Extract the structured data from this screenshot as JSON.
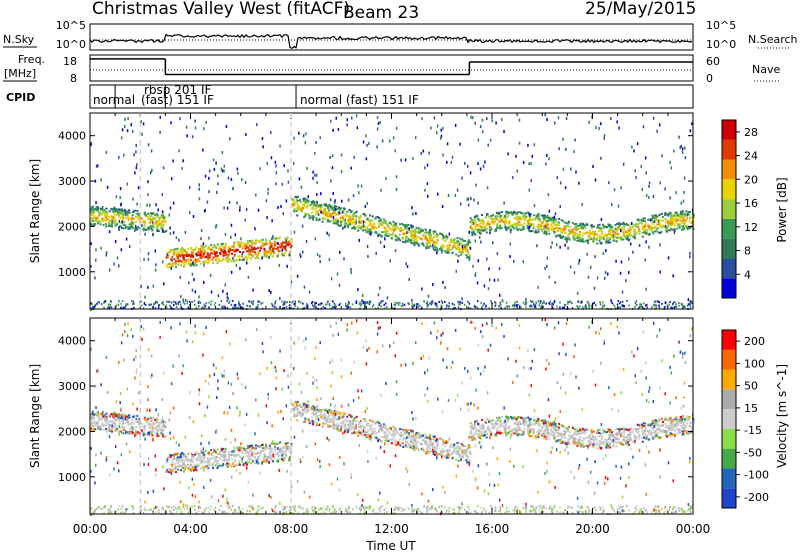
{
  "title": {
    "station": "Christmas Valley West (fitACF)",
    "beam": "Beam 23",
    "date": "25/May/2015"
  },
  "labels": {
    "nsky": "N.Sky",
    "nsearch": "N.Search",
    "freq_line1": "Freq.",
    "freq_line2": "[MHz]",
    "nave": "Nave",
    "cpid": "CPID",
    "time_axis": "Time UT"
  },
  "colors": {
    "power_scale": [
      "#0000dd",
      "#2a4fa0",
      "#2e7d52",
      "#3a9a55",
      "#9dcc3a",
      "#e8d200",
      "#f28c00",
      "#e03a00",
      "#cc0000"
    ],
    "velocity_scale": [
      "#ff0000",
      "#ff6600",
      "#ffaa00",
      "#aaaaaa",
      "#cccccc",
      "#88dd44",
      "#44aa44",
      "#2266bb",
      "#2244cc"
    ]
  },
  "chart_data": [
    {
      "type": "line",
      "name": "noise-panel",
      "left_label": "N.Sky",
      "right_label": "N.Search",
      "left_ticks": [
        "10^5",
        "10^0"
      ],
      "right_ticks": [
        "10^5",
        "10^0"
      ],
      "x_ticks": [
        "00:00",
        "04:00",
        "08:00",
        "12:00",
        "16:00",
        "20:00",
        "00:00"
      ]
    },
    {
      "type": "line",
      "name": "frequency-panel",
      "left_label": "Freq. [MHz]",
      "right_label": "Nave",
      "left_ticks": [
        "18",
        "8"
      ],
      "right_ticks": [
        "60",
        "0"
      ],
      "freq_segments": [
        {
          "start_h": 0.0,
          "end_h": 3.0,
          "mhz": 16.5
        },
        {
          "start_h": 3.0,
          "end_h": 15.1,
          "mhz": 10.5
        },
        {
          "start_h": 15.1,
          "end_h": 24.0,
          "mhz": 15.3
        }
      ]
    },
    {
      "type": "table",
      "name": "cpid-panel",
      "label": "CPID",
      "segments": [
        {
          "start_h": 0.0,
          "end_h": 1.0,
          "text": "normal"
        },
        {
          "start_h": 1.0,
          "end_h": 1.0,
          "text": "(fast) 151 IF"
        },
        {
          "start_h": 3.0,
          "end_h": 3.0,
          "text": "rbsp 201 IF"
        },
        {
          "start_h": 8.2,
          "end_h": 8.2,
          "text": "normal (fast) 151 IF"
        }
      ]
    },
    {
      "type": "heatmap",
      "name": "power-panel",
      "ylabel": "Slant Range [km]",
      "yticks": [
        1000,
        2000,
        3000,
        4000
      ],
      "ylim": [
        180,
        4500
      ],
      "xlim_hours": [
        0,
        24
      ],
      "colorbar_label": "Power [dB]",
      "colorbar_ticks": [
        4,
        8,
        12,
        16,
        20,
        24,
        28
      ],
      "colorbar_range": [
        0,
        30
      ],
      "x_ticks": [
        "00:00",
        "04:00",
        "08:00",
        "12:00",
        "16:00",
        "20:00",
        "00:00"
      ]
    },
    {
      "type": "heatmap",
      "name": "velocity-panel",
      "ylabel": "Slant Range [km]",
      "yticks": [
        1000,
        2000,
        3000,
        4000
      ],
      "ylim": [
        180,
        4500
      ],
      "xlim_hours": [
        0,
        24
      ],
      "colorbar_label": "Velocity [m s^-1]",
      "colorbar_ticks": [
        200,
        100,
        50,
        15,
        -15,
        -50,
        -100,
        -200
      ],
      "x_ticks": [
        "00:00",
        "04:00",
        "08:00",
        "12:00",
        "16:00",
        "20:00",
        "00:00"
      ],
      "xlabel": "Time UT"
    }
  ]
}
